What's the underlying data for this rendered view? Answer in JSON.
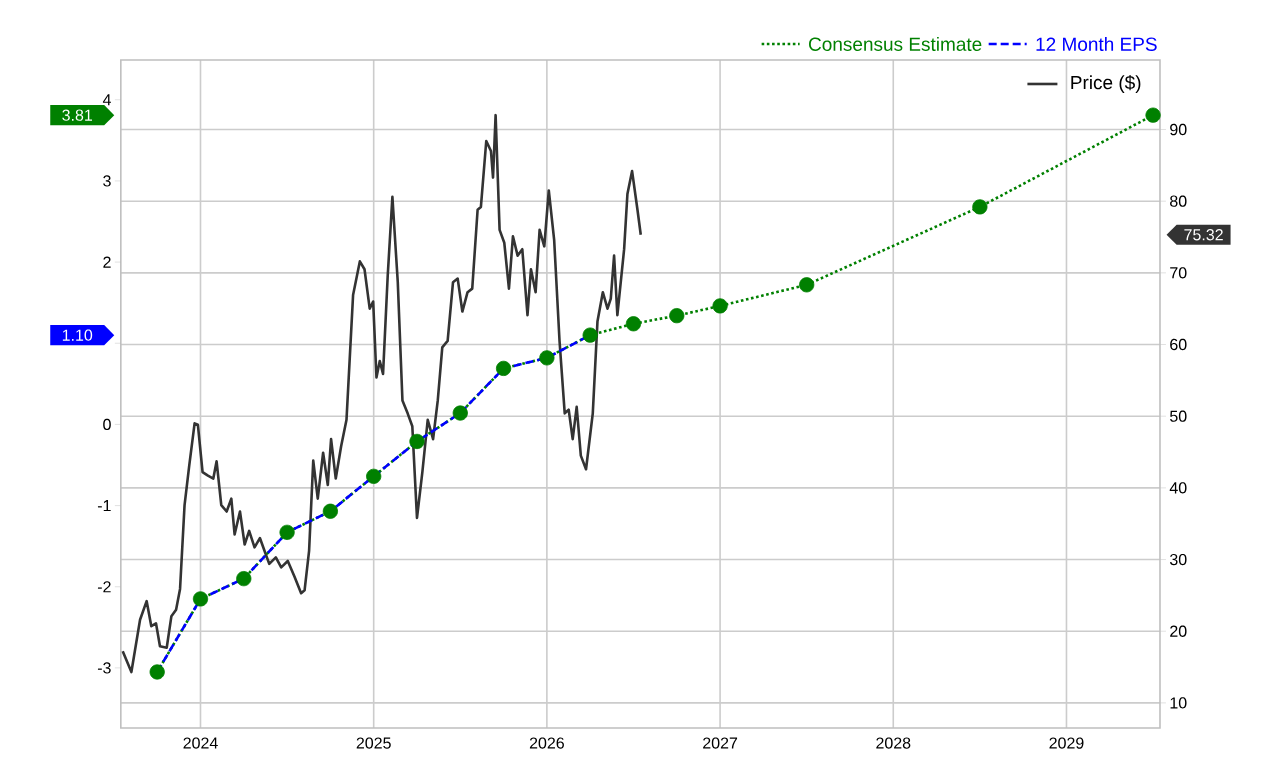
{
  "chart_data": {
    "type": "line",
    "xlim": [
      2023.54,
      2029.54
    ],
    "xticks": [
      2024,
      2025,
      2026,
      2027,
      2028,
      2029
    ],
    "ylim": [
      -3.74,
      4.49
    ],
    "yticks": [
      -3,
      -2,
      -1,
      0,
      {
        "value": 1,
        "label": null
      },
      2,
      3,
      4
    ],
    "y2lim": [
      6.5,
      99.7
    ],
    "y2ticks": [
      10,
      20,
      30,
      40,
      50,
      60,
      70,
      80,
      90
    ],
    "grid": true,
    "legend": "top right",
    "annotations": [
      "3.81",
      "1.10",
      "75.32"
    ],
    "series": [
      {
        "name": "Consensus Estimate",
        "color": "#008000",
        "line_style": "dotted",
        "marker": "circle",
        "x": [
          2023.75,
          2024.0,
          2024.25,
          2024.5,
          2024.75,
          2025.0,
          2025.25,
          2025.5,
          2025.75,
          2026.0,
          2026.25,
          2026.5,
          2026.75,
          2027.0,
          2027.5,
          2028.5,
          2029.5
        ],
        "values": [
          -3.05,
          -2.15,
          -1.9,
          -1.33,
          -1.07,
          -0.64,
          -0.21,
          0.14,
          0.69,
          0.82,
          1.1,
          1.24,
          1.34,
          1.46,
          1.72,
          2.68,
          3.81
        ]
      },
      {
        "name": "12 Month EPS",
        "color": "#0000ff",
        "line_style": "dashed",
        "marker": "none",
        "x": [
          2023.75,
          2024.0,
          2024.25,
          2024.5,
          2024.75,
          2025.0,
          2025.25,
          2025.5,
          2025.75,
          2026.0,
          2026.25
        ],
        "values": [
          -3.05,
          -2.15,
          -1.9,
          -1.33,
          -1.07,
          -0.64,
          -0.21,
          0.14,
          0.69,
          0.82,
          1.1
        ]
      },
      {
        "name": "Price ($)",
        "color": "#333333",
        "line_style": "solid",
        "marker": "none",
        "axis": "y2",
        "x": [
          2023.551,
          2023.601,
          2023.651,
          2023.689,
          2023.716,
          2023.743,
          2023.766,
          2023.805,
          2023.832,
          2023.859,
          2023.882,
          2023.908,
          2023.935,
          2023.966,
          2023.985,
          2024.012,
          2024.043,
          2024.074,
          2024.093,
          2024.12,
          2024.151,
          2024.178,
          2024.197,
          2024.228,
          2024.255,
          2024.281,
          2024.312,
          2024.343,
          2024.37,
          2024.397,
          2024.435,
          2024.466,
          2024.504,
          2024.543,
          2024.581,
          2024.601,
          2024.627,
          2024.651,
          2024.677,
          2024.708,
          2024.735,
          2024.754,
          2024.781,
          2024.812,
          2024.843,
          2024.881,
          2024.92,
          2024.947,
          2024.977,
          2024.997,
          2025.016,
          2025.035,
          2025.054,
          2025.081,
          2025.108,
          2025.139,
          2025.166,
          2025.196,
          2025.223,
          2025.25,
          2025.281,
          2025.312,
          2025.343,
          2025.37,
          2025.396,
          2025.427,
          2025.458,
          2025.485,
          2025.512,
          2025.542,
          2025.569,
          2025.6,
          2025.619,
          2025.65,
          2025.677,
          2025.689,
          2025.704,
          2025.727,
          2025.754,
          2025.781,
          2025.804,
          2025.831,
          2025.858,
          2025.888,
          2025.908,
          2025.935,
          2025.958,
          2025.985,
          2026.011,
          2026.042,
          2026.073,
          2026.103,
          2026.126,
          2026.149,
          2026.172,
          2026.196,
          2026.226,
          2026.265,
          2026.292,
          2026.323,
          2026.35,
          2026.369,
          2026.388,
          2026.407,
          2026.446,
          2026.465,
          2026.492,
          2026.523,
          2026.542
        ],
        "values": [
          17.2,
          14.3,
          21.6,
          24.2,
          20.7,
          21.1,
          17.9,
          17.7,
          22.1,
          23.0,
          25.9,
          37.6,
          43.1,
          49.0,
          48.8,
          42.2,
          41.7,
          41.3,
          43.7,
          37.6,
          36.7,
          38.5,
          33.5,
          36.7,
          32.1,
          34.0,
          31.7,
          33.0,
          31.2,
          29.4,
          30.3,
          28.9,
          29.8,
          27.6,
          25.3,
          25.7,
          31.2,
          43.8,
          38.5,
          44.9,
          40.4,
          46.8,
          41.3,
          45.8,
          49.5,
          66.9,
          71.6,
          70.5,
          65.0,
          66.0,
          55.4,
          57.7,
          55.9,
          69.6,
          80.6,
          68.7,
          52.2,
          50.4,
          48.6,
          35.8,
          42.2,
          49.5,
          46.8,
          52.2,
          59.6,
          60.5,
          68.7,
          69.2,
          64.6,
          67.3,
          67.8,
          78.8,
          79.2,
          88.4,
          87.0,
          83.3,
          92.0,
          76.0,
          74.2,
          67.8,
          75.1,
          72.4,
          73.3,
          64.1,
          70.5,
          67.3,
          76.0,
          73.7,
          81.5,
          74.6,
          60.5,
          50.4,
          50.9,
          46.8,
          51.3,
          44.5,
          42.6,
          50.4,
          63.2,
          67.3,
          65.0,
          66.4,
          72.4,
          64.1,
          73.3,
          81.0,
          84.2,
          78.8,
          75.32
        ]
      }
    ]
  }
}
